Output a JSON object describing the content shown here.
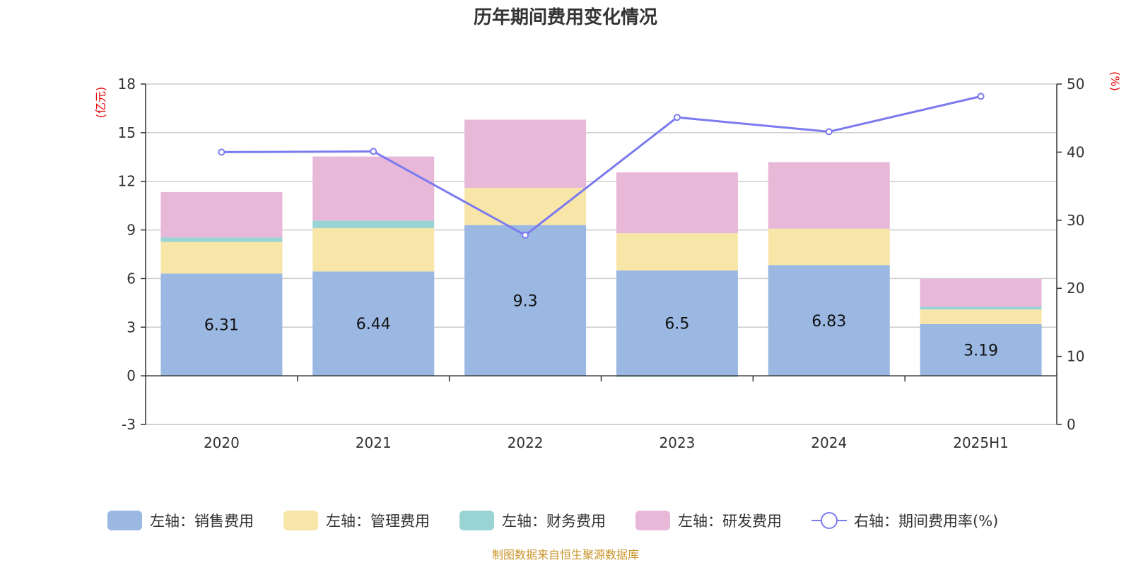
{
  "chart_data": {
    "type": "bar",
    "title": "历年期间费用变化情况",
    "categories": [
      "2020",
      "2021",
      "2022",
      "2023",
      "2024",
      "2025H1"
    ],
    "left_axis": {
      "unit": "(亿元)",
      "ylim": [
        -3,
        18
      ],
      "ticks": [
        "-3",
        "0",
        "3",
        "6",
        "9",
        "12",
        "15",
        "18"
      ]
    },
    "right_axis": {
      "unit": "(%)",
      "ylim": [
        0,
        50
      ],
      "ticks": [
        "0",
        "10",
        "20",
        "30",
        "40",
        "50"
      ]
    },
    "series": [
      {
        "name": "左轴：销售费用",
        "color": "#9bb8e2",
        "values": [
          6.31,
          6.44,
          9.3,
          6.5,
          6.83,
          3.19
        ],
        "labels": [
          "6.31",
          "6.44",
          "9.3",
          "6.5",
          "6.83",
          "3.19"
        ]
      },
      {
        "name": "左轴：管理费用",
        "color": "#f8e6a8",
        "values": [
          1.95,
          2.67,
          2.3,
          2.3,
          2.25,
          0.9
        ]
      },
      {
        "name": "左轴：财务费用",
        "color": "#99d3d3",
        "values": [
          0.28,
          0.47,
          0.0,
          -0.07,
          0.0,
          0.18
        ]
      },
      {
        "name": "左轴：研发费用",
        "color": "#e8b8d9",
        "values": [
          2.8,
          3.95,
          4.2,
          3.75,
          4.1,
          1.72
        ]
      }
    ],
    "line": {
      "name": "右轴：期间费用率(%)",
      "color": "#7b7bef",
      "values": [
        40.0,
        40.1,
        27.8,
        45.1,
        43.0,
        48.2
      ]
    },
    "grid": true,
    "legend_position": "bottom"
  },
  "source_note": "制图数据来自恒生聚源数据库"
}
